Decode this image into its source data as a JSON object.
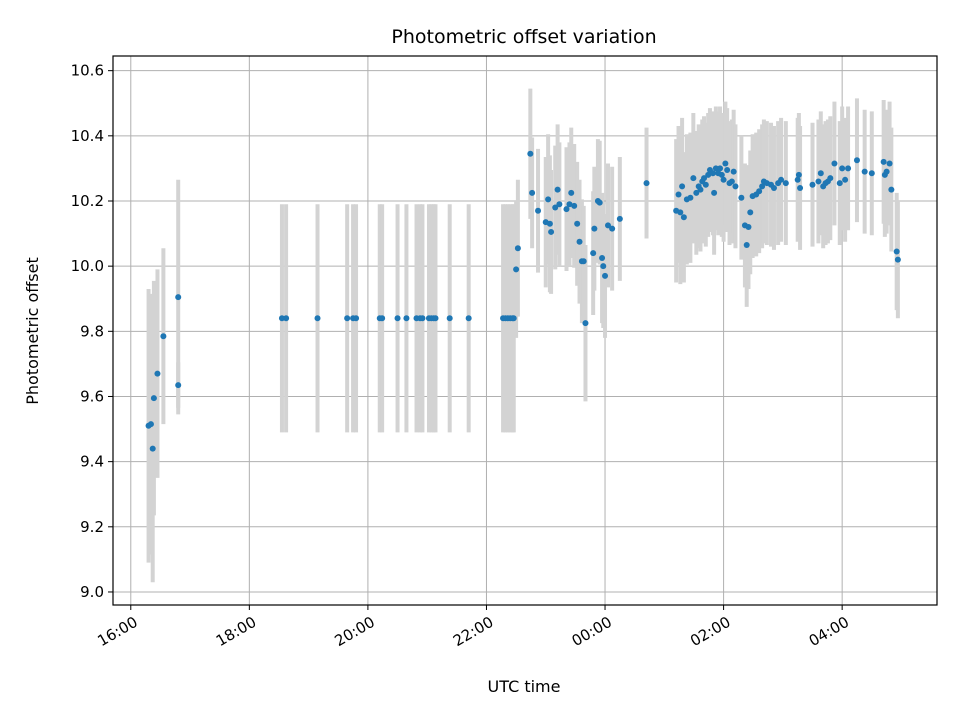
{
  "chart_data": {
    "type": "scatter",
    "title": "Photometric offset variation",
    "xlabel": "UTC time",
    "ylabel": "Photometric offset",
    "x_unit": "hours",
    "xlim": [
      15.7,
      29.6
    ],
    "ylim": [
      8.96,
      10.645
    ],
    "xticks": [
      {
        "value": 16,
        "label": "16:00"
      },
      {
        "value": 18,
        "label": "18:00"
      },
      {
        "value": 20,
        "label": "20:00"
      },
      {
        "value": 22,
        "label": "22:00"
      },
      {
        "value": 24,
        "label": "00:00"
      },
      {
        "value": 26,
        "label": "02:00"
      },
      {
        "value": 28,
        "label": "04:00"
      }
    ],
    "yticks": [
      {
        "value": 9.0,
        "label": "9.0"
      },
      {
        "value": 9.2,
        "label": "9.2"
      },
      {
        "value": 9.4,
        "label": "9.4"
      },
      {
        "value": 9.6,
        "label": "9.6"
      },
      {
        "value": 9.8,
        "label": "9.8"
      },
      {
        "value": 10.0,
        "label": "10.0"
      },
      {
        "value": 10.2,
        "label": "10.2"
      },
      {
        "value": 10.4,
        "label": "10.4"
      },
      {
        "value": 10.6,
        "label": "10.6"
      }
    ],
    "grid": true,
    "point_color": "#1f77b4",
    "errorbar_color": "#d3d3d3",
    "points": [
      [
        16.3,
        9.51,
        0.42
      ],
      [
        16.34,
        9.515,
        0.4
      ],
      [
        16.37,
        9.44,
        0.41
      ],
      [
        16.39,
        9.595,
        0.36
      ],
      [
        16.45,
        9.67,
        0.32
      ],
      [
        16.55,
        9.785,
        0.27
      ],
      [
        16.8,
        9.905,
        0.36
      ],
      [
        16.8,
        9.635,
        0.07
      ],
      [
        18.55,
        9.84,
        0.35
      ],
      [
        18.62,
        9.84,
        0.35
      ],
      [
        19.15,
        9.84,
        0.35
      ],
      [
        19.65,
        9.84,
        0.35
      ],
      [
        19.75,
        9.84,
        0.35
      ],
      [
        19.8,
        9.84,
        0.35
      ],
      [
        20.2,
        9.84,
        0.35
      ],
      [
        20.24,
        9.84,
        0.35
      ],
      [
        20.5,
        9.84,
        0.35
      ],
      [
        20.65,
        9.84,
        0.35
      ],
      [
        20.82,
        9.84,
        0.35
      ],
      [
        20.88,
        9.84,
        0.35
      ],
      [
        20.92,
        9.84,
        0.35
      ],
      [
        21.03,
        9.84,
        0.35
      ],
      [
        21.07,
        9.84,
        0.35
      ],
      [
        21.11,
        9.84,
        0.35
      ],
      [
        21.14,
        9.84,
        0.35
      ],
      [
        21.38,
        9.84,
        0.35
      ],
      [
        21.7,
        9.84,
        0.35
      ],
      [
        22.28,
        9.84,
        0.35
      ],
      [
        22.32,
        9.84,
        0.35
      ],
      [
        22.36,
        9.84,
        0.35
      ],
      [
        22.4,
        9.84,
        0.35
      ],
      [
        22.44,
        9.84,
        0.35
      ],
      [
        22.46,
        9.84,
        0.35
      ],
      [
        22.5,
        9.99,
        0.21
      ],
      [
        22.53,
        10.055,
        0.21
      ],
      [
        22.74,
        10.345,
        0.2
      ],
      [
        22.77,
        10.225,
        0.17
      ],
      [
        22.87,
        10.17,
        0.19
      ],
      [
        23.0,
        10.135,
        0.2
      ],
      [
        23.04,
        10.205,
        0.2
      ],
      [
        23.07,
        10.13,
        0.21
      ],
      [
        23.09,
        10.105,
        0.19
      ],
      [
        23.16,
        10.18,
        0.19
      ],
      [
        23.2,
        10.235,
        0.2
      ],
      [
        23.23,
        10.19,
        0.19
      ],
      [
        23.35,
        10.175,
        0.19
      ],
      [
        23.4,
        10.19,
        0.19
      ],
      [
        23.43,
        10.225,
        0.2
      ],
      [
        23.48,
        10.185,
        0.19
      ],
      [
        23.53,
        10.13,
        0.19
      ],
      [
        23.57,
        10.075,
        0.19
      ],
      [
        23.61,
        10.015,
        0.19
      ],
      [
        23.64,
        10.015,
        0.17
      ],
      [
        23.67,
        9.825,
        0.24
      ],
      [
        23.8,
        10.04,
        0.19
      ],
      [
        23.82,
        10.115,
        0.19
      ],
      [
        23.88,
        10.2,
        0.19
      ],
      [
        23.91,
        10.195,
        0.19
      ],
      [
        23.95,
        10.025,
        0.2
      ],
      [
        23.97,
        10.0,
        0.19
      ],
      [
        24.0,
        9.97,
        0.19
      ],
      [
        24.05,
        10.125,
        0.19
      ],
      [
        24.12,
        10.115,
        0.19
      ],
      [
        24.25,
        10.145,
        0.19
      ],
      [
        24.7,
        10.255,
        0.17
      ],
      [
        25.2,
        10.17,
        0.22
      ],
      [
        25.24,
        10.22,
        0.21
      ],
      [
        25.27,
        10.165,
        0.22
      ],
      [
        25.3,
        10.245,
        0.21
      ],
      [
        25.33,
        10.15,
        0.2
      ],
      [
        25.38,
        10.205,
        0.2
      ],
      [
        25.44,
        10.21,
        0.2
      ],
      [
        25.49,
        10.27,
        0.2
      ],
      [
        25.54,
        10.225,
        0.19
      ],
      [
        25.58,
        10.245,
        0.19
      ],
      [
        25.61,
        10.235,
        0.19
      ],
      [
        25.64,
        10.26,
        0.19
      ],
      [
        25.67,
        10.27,
        0.19
      ],
      [
        25.7,
        10.25,
        0.19
      ],
      [
        25.74,
        10.28,
        0.19
      ],
      [
        25.77,
        10.295,
        0.19
      ],
      [
        25.82,
        10.285,
        0.19
      ],
      [
        25.84,
        10.225,
        0.19
      ],
      [
        25.87,
        10.3,
        0.19
      ],
      [
        25.91,
        10.285,
        0.19
      ],
      [
        25.94,
        10.3,
        0.19
      ],
      [
        25.97,
        10.28,
        0.19
      ],
      [
        26.0,
        10.265,
        0.19
      ],
      [
        26.03,
        10.315,
        0.19
      ],
      [
        26.06,
        10.295,
        0.19
      ],
      [
        26.1,
        10.255,
        0.19
      ],
      [
        26.14,
        10.26,
        0.19
      ],
      [
        26.17,
        10.29,
        0.19
      ],
      [
        26.2,
        10.245,
        0.19
      ],
      [
        26.3,
        10.21,
        0.19
      ],
      [
        26.36,
        10.125,
        0.19
      ],
      [
        26.39,
        10.065,
        0.19
      ],
      [
        26.42,
        10.12,
        0.19
      ],
      [
        26.45,
        10.165,
        0.19
      ],
      [
        26.49,
        10.215,
        0.19
      ],
      [
        26.55,
        10.22,
        0.19
      ],
      [
        26.6,
        10.23,
        0.19
      ],
      [
        26.65,
        10.245,
        0.19
      ],
      [
        26.68,
        10.26,
        0.19
      ],
      [
        26.73,
        10.255,
        0.19
      ],
      [
        26.8,
        10.25,
        0.19
      ],
      [
        26.85,
        10.24,
        0.19
      ],
      [
        26.92,
        10.255,
        0.19
      ],
      [
        26.97,
        10.265,
        0.19
      ],
      [
        27.05,
        10.255,
        0.19
      ],
      [
        27.25,
        10.265,
        0.19
      ],
      [
        27.27,
        10.28,
        0.19
      ],
      [
        27.29,
        10.24,
        0.19
      ],
      [
        27.5,
        10.25,
        0.19
      ],
      [
        27.6,
        10.26,
        0.19
      ],
      [
        27.64,
        10.285,
        0.19
      ],
      [
        27.68,
        10.245,
        0.19
      ],
      [
        27.72,
        10.255,
        0.19
      ],
      [
        27.76,
        10.26,
        0.19
      ],
      [
        27.8,
        10.27,
        0.19
      ],
      [
        27.87,
        10.315,
        0.19
      ],
      [
        27.96,
        10.255,
        0.19
      ],
      [
        28.0,
        10.3,
        0.19
      ],
      [
        28.05,
        10.265,
        0.19
      ],
      [
        28.1,
        10.3,
        0.19
      ],
      [
        28.25,
        10.325,
        0.19
      ],
      [
        28.38,
        10.29,
        0.19
      ],
      [
        28.5,
        10.285,
        0.19
      ],
      [
        28.7,
        10.32,
        0.19
      ],
      [
        28.72,
        10.28,
        0.19
      ],
      [
        28.75,
        10.29,
        0.19
      ],
      [
        28.8,
        10.315,
        0.19
      ],
      [
        28.83,
        10.235,
        0.19
      ],
      [
        28.92,
        10.045,
        0.18
      ],
      [
        28.94,
        10.02,
        0.18
      ]
    ]
  }
}
